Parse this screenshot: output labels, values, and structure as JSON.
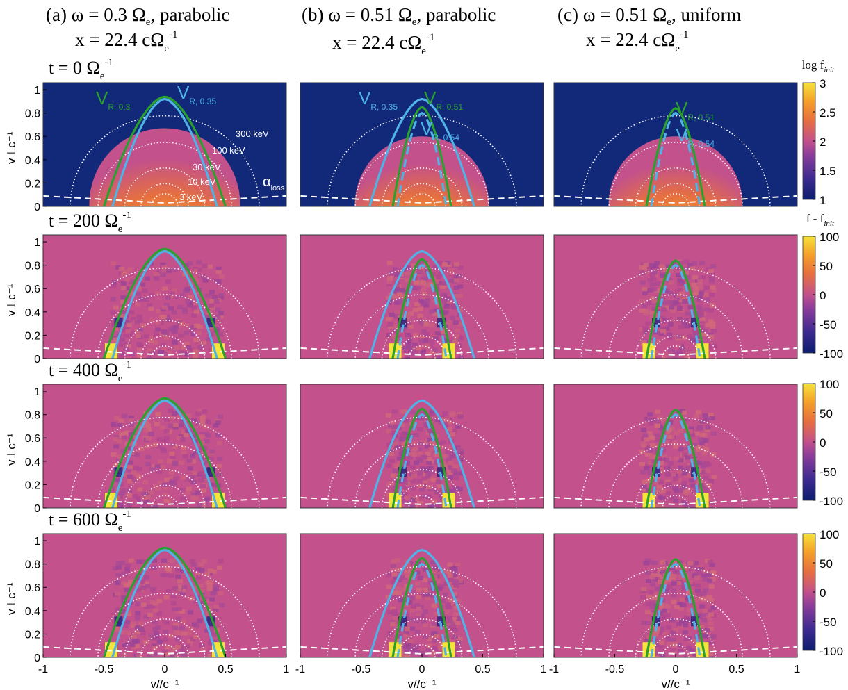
{
  "colors": {
    "background_fill": "#c2518c",
    "top_background_fill": "#12297a",
    "green_curve": "#2aa12f",
    "blue_curve": "#4fb3e6",
    "dotted_circles": "#ffffff",
    "colormap": [
      "#0c1d6e",
      "#3c2a90",
      "#8a3d99",
      "#c2518c",
      "#e6703f",
      "#f59f2a",
      "#f5e23a"
    ]
  },
  "columns": [
    {
      "title_line1": "(a) ω = 0.3 Ω",
      "title_sub": "e",
      "title_tail": ", parabolic",
      "title_line2": "x = 22.4 cΩ",
      "title_line2_sub": "e",
      "title_line2_sup": "-1"
    },
    {
      "title_line1": "(b) ω = 0.51 Ω",
      "title_sub": "e",
      "title_tail": ", parabolic",
      "title_line2": "x = 22.4 cΩ",
      "title_line2_sub": "e",
      "title_line2_sup": "-1"
    },
    {
      "title_line1": "(c) ω = 0.51 Ω",
      "title_sub": "e",
      "title_tail": ", uniform",
      "title_line2": "x = 22.4 cΩ",
      "title_line2_sub": "e",
      "title_line2_sup": "-1"
    }
  ],
  "rows": [
    {
      "time_label": "t = 0  Ω",
      "time_sub": "e",
      "time_sup": "-1"
    },
    {
      "time_label": "t = 200  Ω",
      "time_sub": "e",
      "time_sup": "-1"
    },
    {
      "time_label": "t = 400  Ω",
      "time_sub": "e",
      "time_sup": "-1"
    },
    {
      "time_label": "t = 600  Ω",
      "time_sub": "e",
      "time_sup": "-1"
    }
  ],
  "axes": {
    "ylabel": "v⊥c⁻¹",
    "xlabel": "v//c⁻¹",
    "yticks": [
      "0",
      "0.2",
      "0.4",
      "0.6",
      "0.8",
      "1"
    ],
    "xticks": [
      "-1",
      "-0.5",
      "0",
      "0.5",
      "1"
    ]
  },
  "colorbars": [
    {
      "title": "log f",
      "title_sub": "init",
      "ticks": [
        "3",
        "2.5",
        "2",
        "1.5",
        "1"
      ],
      "range": [
        1,
        3
      ]
    },
    {
      "title": "f - f",
      "title_sub": "init",
      "ticks": [
        "100",
        "50",
        "0",
        "-50",
        "-100"
      ],
      "range": [
        -100,
        100
      ]
    },
    {
      "title": "",
      "title_sub": "",
      "ticks": [
        "100",
        "50",
        "0",
        "-50",
        "-100"
      ],
      "range": [
        -100,
        100
      ]
    },
    {
      "title": "",
      "title_sub": "",
      "ticks": [
        "100",
        "50",
        "0",
        "-50",
        "-100"
      ],
      "range": [
        -100,
        100
      ]
    }
  ],
  "annotations": {
    "energy_labels": [
      "300 keV",
      "100 keV",
      "30 keV",
      "10 keV",
      "3 keV"
    ],
    "loss_cone": "α",
    "loss_cone_sub": "loss",
    "resonance_labels": {
      "a": [
        {
          "main": "V",
          "sub": "R, 0.3",
          "color": "green"
        },
        {
          "main": "V",
          "sub": "R, 0.35",
          "color": "blue"
        }
      ],
      "b": [
        {
          "main": "V",
          "sub": "R, 0.35",
          "color": "blue"
        },
        {
          "main": "V",
          "sub": "R, 0.51",
          "color": "green"
        },
        {
          "main": "V",
          "sub": "R, 0.54",
          "color": "blue"
        }
      ],
      "c": [
        {
          "main": "V",
          "sub": "R, 0.51",
          "color": "green"
        },
        {
          "main": "V",
          "sub": "R, 0.54",
          "color": "blue"
        }
      ]
    }
  },
  "chart_data": {
    "type": "heatmap",
    "panels": "4 rows × 3 columns",
    "x_range": [
      -1,
      1
    ],
    "y_range": [
      0,
      1
    ],
    "energy_circles_keV": [
      3,
      10,
      30,
      100,
      300
    ],
    "resonance_curves": {
      "a": [
        {
          "label": "V_R,0.3",
          "peak": 0.94,
          "base_half_width": 0.5
        },
        {
          "label": "V_R,0.35",
          "peak": 0.92,
          "base_half_width": 0.43
        }
      ],
      "b": [
        {
          "label": "V_R,0.35",
          "peak": 0.92,
          "base_half_width": 0.43
        },
        {
          "label": "V_R,0.51",
          "peak": 0.85,
          "base_half_width": 0.24
        },
        {
          "label": "V_R,0.54",
          "peak": 0.8,
          "base_half_width": 0.2,
          "dashed": true
        }
      ],
      "c": [
        {
          "label": "V_R,0.51",
          "peak": 0.84,
          "base_half_width": 0.24
        },
        {
          "label": "V_R,0.54",
          "peak": 0.8,
          "base_half_width": 0.2,
          "dashed": true
        }
      ]
    }
  }
}
